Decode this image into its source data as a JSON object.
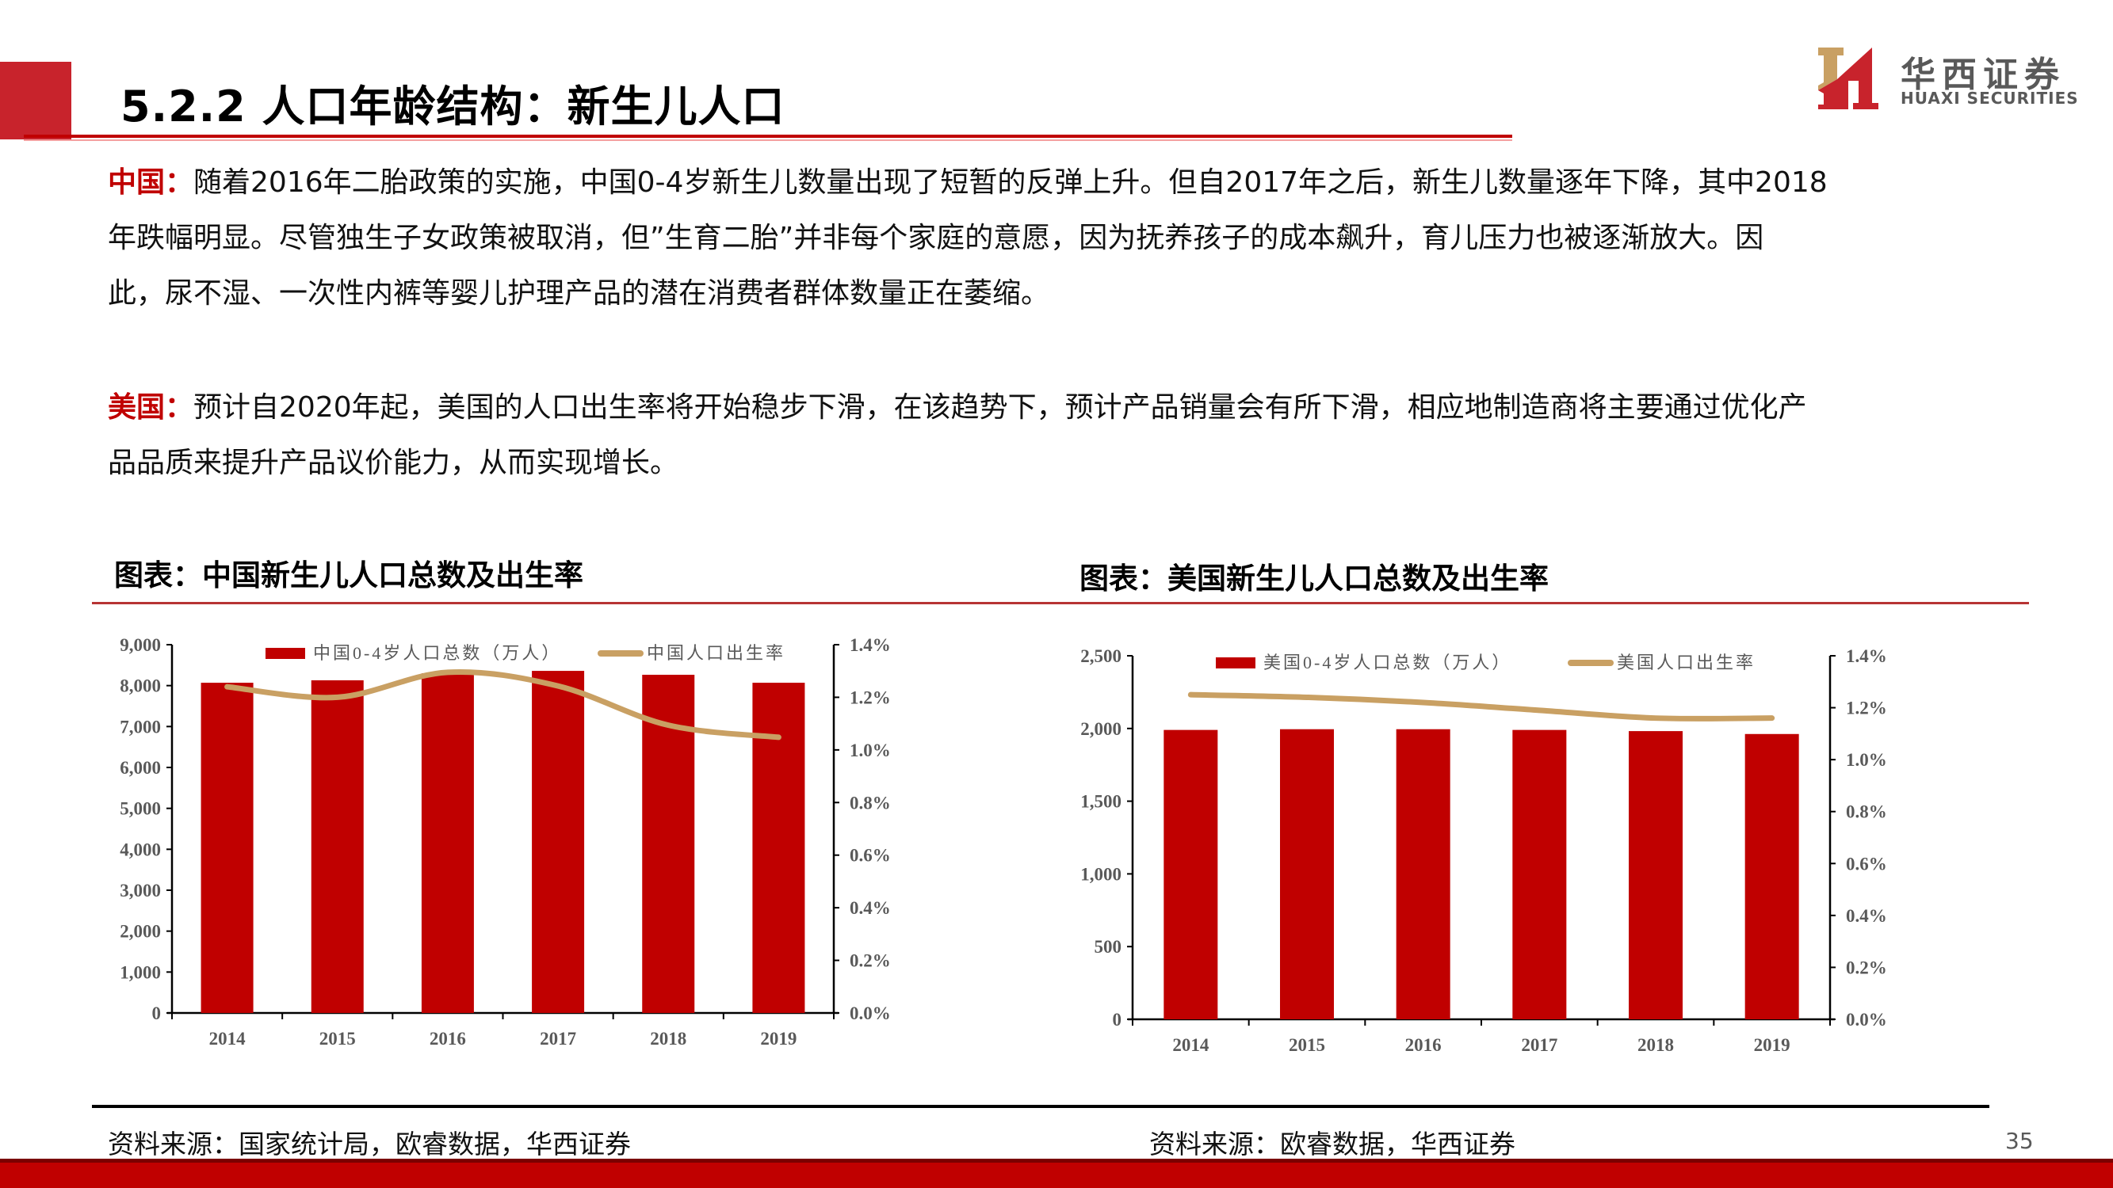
{
  "header": {
    "title": "5.2.2 人口年龄结构：新生儿人口",
    "logo_cn": "华西证券",
    "logo_en": "HUAXI SECURITIES"
  },
  "paragraphs": [
    {
      "lead": "中国：",
      "lines": [
        "随着2016年二胎政策的实施，中国0-4岁新生儿数量出现了短暂的反弹上升。但自2017年之后，新生儿数量逐年下降，其中2018",
        "年跌幅明显。尽管独生子女政策被取消，但”生育二胎”并非每个家庭的意愿，因为抚养孩子的成本飙升，育儿压力也被逐渐放大。因",
        "此，尿不湿、一次性内裤等婴儿护理产品的潜在消费者群体数量正在萎缩。"
      ]
    },
    {
      "lead": "美国：",
      "lines": [
        "预计自2020年起，美国的人口出生率将开始稳步下滑，在该趋势下，预计产品销量会有所下滑，相应地制造商将主要通过优化产",
        "品品质来提升产品议价能力，从而实现增长。"
      ]
    }
  ],
  "charts": {
    "left": {
      "heading": "图表：中国新生儿人口总数及出生率",
      "source": "资料来源：国家统计局，欧睿数据，华西证券"
    },
    "right": {
      "heading": "图表：美国新生儿人口总数及出生率",
      "source": "资料来源：欧睿数据，华西证券"
    }
  },
  "footer": {
    "page_number": "35"
  },
  "colors": {
    "accent": "#c00000",
    "line": "#c9a063",
    "axis_text": "#595959"
  },
  "chart_data": [
    {
      "type": "bar",
      "title": "图表：中国新生儿人口总数及出生率",
      "categories": [
        "2014",
        "2015",
        "2016",
        "2017",
        "2018",
        "2019"
      ],
      "series": [
        {
          "name": "中国0-4岁人口总数（万人）",
          "type": "bar",
          "axis": "left",
          "values": [
            8070,
            8130,
            8300,
            8360,
            8265,
            8070
          ]
        },
        {
          "name": "中国人口出生率",
          "type": "line",
          "axis": "right",
          "values": [
            1.24,
            1.2,
            1.295,
            1.243,
            1.094,
            1.048
          ]
        }
      ],
      "y_left": {
        "ylim": [
          0,
          9000
        ],
        "ticks": [
          "0",
          "1,000",
          "2,000",
          "3,000",
          "4,000",
          "5,000",
          "6,000",
          "7,000",
          "8,000",
          "9,000"
        ]
      },
      "y_right": {
        "ylim": [
          0,
          1.4
        ],
        "ticks": [
          "0.0%",
          "0.2%",
          "0.4%",
          "0.6%",
          "0.8%",
          "1.0%",
          "1.2%",
          "1.4%"
        ]
      },
      "xlabel": "",
      "ylabel": "",
      "legend_position": "top",
      "grid": false
    },
    {
      "type": "bar",
      "title": "图表：美国新生儿人口总数及出生率",
      "categories": [
        "2014",
        "2015",
        "2016",
        "2017",
        "2018",
        "2019"
      ],
      "series": [
        {
          "name": "美国0-4岁人口总数（万人）",
          "type": "bar",
          "axis": "left",
          "values": [
            1990,
            1995,
            1995,
            1990,
            1982,
            1962
          ]
        },
        {
          "name": "美国人口出生率",
          "type": "line",
          "axis": "right",
          "values": [
            1.25,
            1.24,
            1.22,
            1.19,
            1.16,
            1.16
          ]
        }
      ],
      "y_left": {
        "ylim": [
          0,
          2500
        ],
        "ticks": [
          "0",
          "500",
          "1,000",
          "1,500",
          "2,000",
          "2,500"
        ]
      },
      "y_right": {
        "ylim": [
          0,
          1.4
        ],
        "ticks": [
          "0.0%",
          "0.2%",
          "0.4%",
          "0.6%",
          "0.8%",
          "1.0%",
          "1.2%",
          "1.4%"
        ]
      },
      "xlabel": "",
      "ylabel": "",
      "legend_position": "top",
      "grid": false
    }
  ]
}
